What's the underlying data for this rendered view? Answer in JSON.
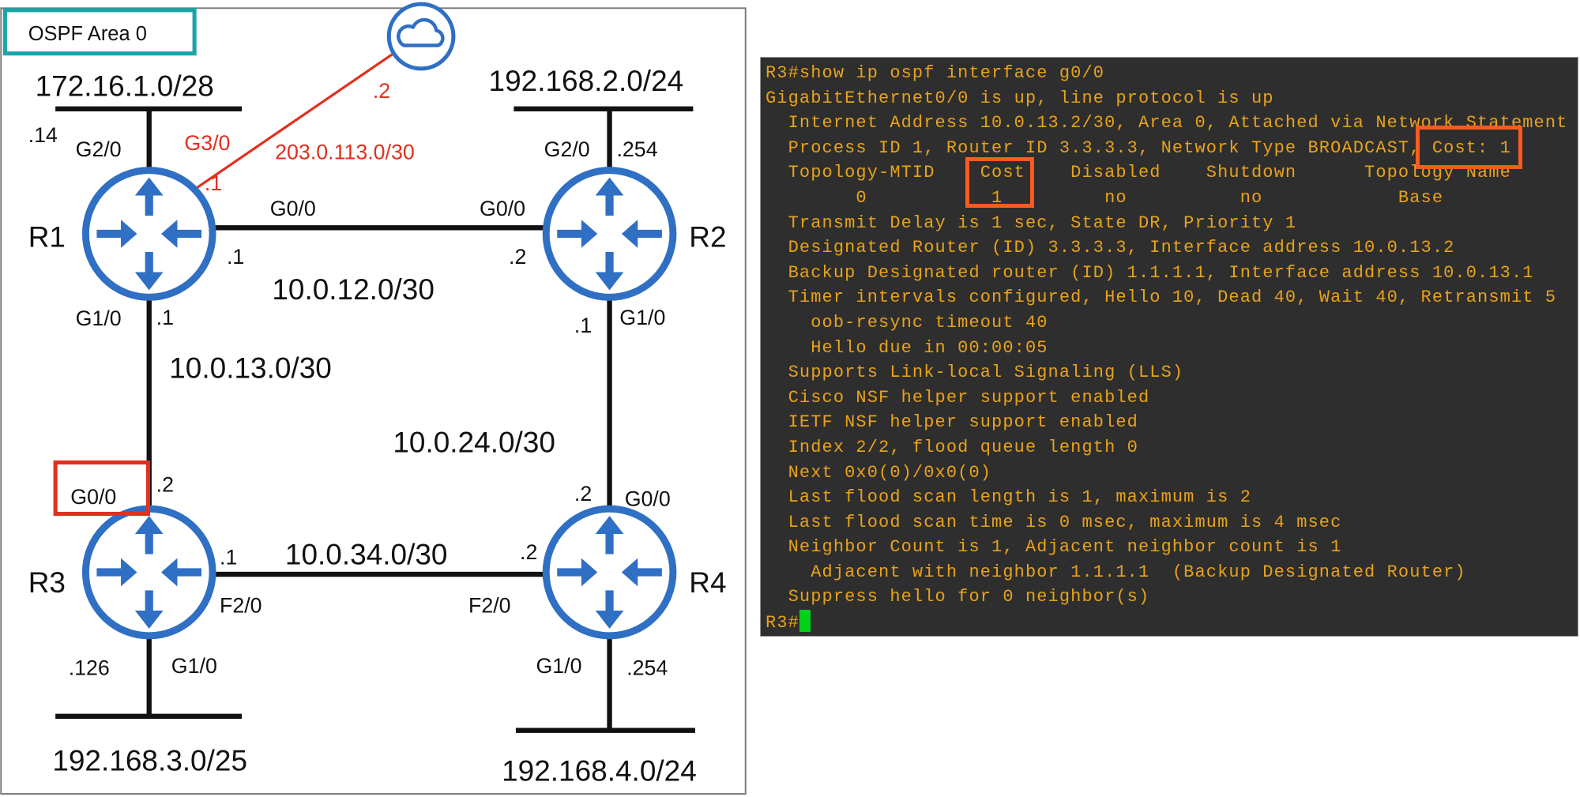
{
  "diagram": {
    "area_label": "OSPF Area 0",
    "colors": {
      "router": "#2f6fc4",
      "area_box": "#1aa3a8",
      "internet_link": "#e0301e",
      "highlight": "#e0301e"
    },
    "internet_icon": "cloud-icon",
    "routers": [
      "R1",
      "R2",
      "R3",
      "R4"
    ],
    "networks": {
      "r1_lan": "172.16.1.0/28",
      "r2_lan": "192.168.2.0/24",
      "r3_lan": "192.168.3.0/25",
      "r4_lan": "192.168.4.0/24",
      "r1_r2": "10.0.12.0/30",
      "r1_r3": "10.0.13.0/30",
      "r2_r4": "10.0.24.0/30",
      "r3_r4": "10.0.34.0/30",
      "r1_internet": "203.0.113.0/30"
    },
    "labels": {
      "r1_g20": "G2/0",
      "r1_g20_ip": ".14",
      "r1_g30": "G3/0",
      "r1_g30_ip": ".1",
      "isp_ip": ".2",
      "r1_g00": "G0/0",
      "r1_g00_ip": ".1",
      "r2_g00": "G0/0",
      "r2_g00_ip": ".2",
      "r1_g10": "G1/0",
      "r1_g10_ip": ".1",
      "r2_g20": "G2/0",
      "r2_g20_ip": ".254",
      "r2_g10": "G1/0",
      "r2_g10_ip": ".1",
      "r3_g00": "G0/0",
      "r3_g00_ip": ".2",
      "r4_g00": "G0/0",
      "r4_g00_ip": ".2",
      "r3_f20": "F2/0",
      "r3_f20_ip": ".1",
      "r4_f20": "F2/0",
      "r4_f20_ip": ".2",
      "r3_g10": "G1/0",
      "r3_g10_ip": ".126",
      "r4_g10": "G1/0",
      "r4_g10_ip": ".254"
    }
  },
  "terminal": {
    "lines": [
      "R3#show ip ospf interface g0/0",
      "GigabitEthernet0/0 is up, line protocol is up",
      "  Internet Address 10.0.13.2/30, Area 0, Attached via Network Statement",
      "  Process ID 1, Router ID 3.3.3.3, Network Type BROADCAST, Cost: 1",
      "  Topology-MTID    Cost    Disabled    Shutdown      Topology Name",
      "        0           1         no          no            Base",
      "  Transmit Delay is 1 sec, State DR, Priority 1",
      "  Designated Router (ID) 3.3.3.3, Interface address 10.0.13.2",
      "  Backup Designated router (ID) 1.1.1.1, Interface address 10.0.13.1",
      "  Timer intervals configured, Hello 10, Dead 40, Wait 40, Retransmit 5",
      "    oob-resync timeout 40",
      "    Hello due in 00:00:05",
      "  Supports Link-local Signaling (LLS)",
      "  Cisco NSF helper support enabled",
      "  IETF NSF helper support enabled",
      "  Index 2/2, flood queue length 0",
      "  Next 0x0(0)/0x0(0)",
      "  Last flood scan length is 1, maximum is 2",
      "  Last flood scan time is 0 msec, maximum is 4 msec",
      "  Neighbor Count is 1, Adjacent neighbor count is 1",
      "    Adjacent with neighbor 1.1.1.1  (Backup Designated Router)",
      "  Suppress hello for 0 neighbor(s)"
    ],
    "prompt": "R3#",
    "colors": {
      "background": "#2e2e2e",
      "text": "#e8a21a",
      "cursor": "#00d11a",
      "highlight": "#ff5a1f"
    }
  }
}
